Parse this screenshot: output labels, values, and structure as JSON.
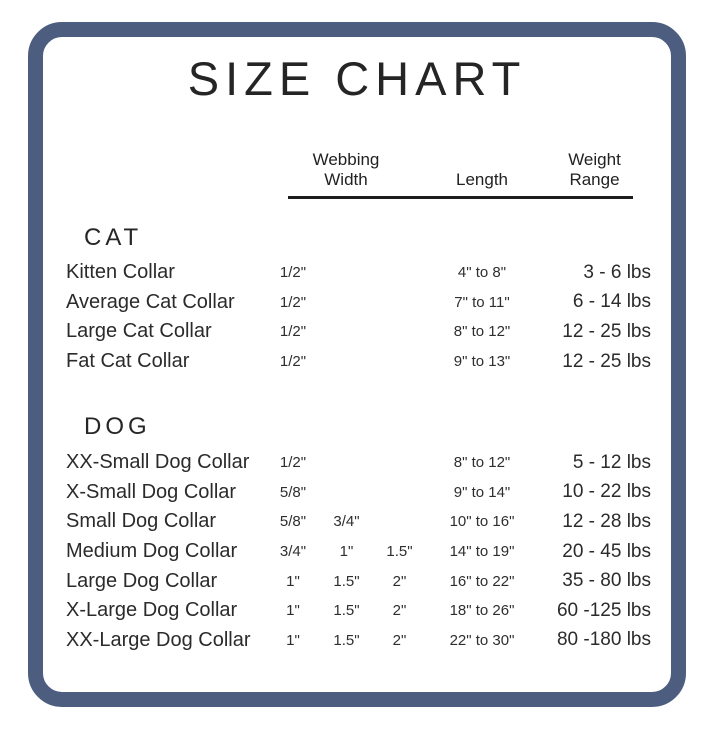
{
  "title": "SIZE CHART",
  "columns": {
    "webbing": {
      "lines": [
        "Webbing",
        "Width"
      ]
    },
    "length": {
      "lines": [
        "Length"
      ]
    },
    "weight": {
      "lines": [
        "Weight",
        "Range"
      ]
    }
  },
  "sections": [
    {
      "name": "CAT",
      "rows": [
        {
          "label": "Kitten Collar",
          "widths": [
            "1/2\"",
            "",
            ""
          ],
          "length": "4\" to 8\"",
          "weight": "3 - 6 lbs"
        },
        {
          "label": "Average Cat Collar",
          "widths": [
            "1/2\"",
            "",
            ""
          ],
          "length": "7\" to 11\"",
          "weight": "6 - 14 lbs"
        },
        {
          "label": "Large Cat Collar",
          "widths": [
            "1/2\"",
            "",
            ""
          ],
          "length": "8\" to 12\"",
          "weight": "12 - 25 lbs"
        },
        {
          "label": "Fat Cat Collar",
          "widths": [
            "1/2\"",
            "",
            ""
          ],
          "length": "9\" to 13\"",
          "weight": "12 - 25 lbs"
        }
      ]
    },
    {
      "name": "DOG",
      "rows": [
        {
          "label": "XX-Small Dog Collar",
          "widths": [
            "1/2\"",
            "",
            ""
          ],
          "length": "8\" to 12\"",
          "weight": "5 - 12 lbs"
        },
        {
          "label": "X-Small Dog Collar",
          "widths": [
            "5/8\"",
            "",
            ""
          ],
          "length": "9\" to 14\"",
          "weight": "10 - 22 lbs"
        },
        {
          "label": "Small Dog Collar",
          "widths": [
            "5/8\"",
            "3/4\"",
            ""
          ],
          "length": "10\" to 16\"",
          "weight": "12 - 28 lbs"
        },
        {
          "label": "Medium Dog Collar",
          "widths": [
            "3/4\"",
            "1\"",
            "1.5\""
          ],
          "length": "14\" to 19\"",
          "weight": "20 - 45 lbs"
        },
        {
          "label": "Large Dog Collar",
          "widths": [
            "1\"",
            "1.5\"",
            "2\""
          ],
          "length": "16\" to 22\"",
          "weight": "35 - 80 lbs"
        },
        {
          "label": "X-Large Dog Collar",
          "widths": [
            "1\"",
            "1.5\"",
            "2\""
          ],
          "length": "18\" to 26\"",
          "weight": "60 -125 lbs"
        },
        {
          "label": "XX-Large Dog Collar",
          "widths": [
            "1\"",
            "1.5\"",
            "2\""
          ],
          "length": "22\" to 30\"",
          "weight": "80 -180 lbs"
        }
      ]
    }
  ],
  "colors": {
    "border": "#4c5d80",
    "text": "#2b2b2b",
    "rule": "#1d1d1d",
    "background": "#ffffff"
  }
}
